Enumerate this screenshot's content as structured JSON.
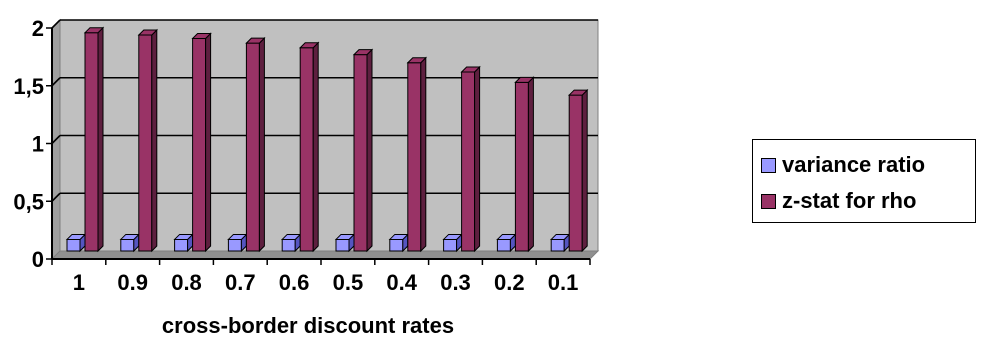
{
  "colors": {
    "plot_background": "#c0c0c0",
    "series1": "#9999ff",
    "series1_shadow": "#5555c0",
    "series2": "#993366",
    "series2_shadow": "#5e1f3f",
    "gridline": "#000000"
  },
  "chart_data": {
    "type": "bar",
    "title": "",
    "xlabel": "cross-border discount rates",
    "ylabel": "",
    "categories": [
      "1",
      "0.9",
      "0.8",
      "0.7",
      "0.6",
      "0.5",
      "0.4",
      "0.3",
      "0.2",
      "0.1"
    ],
    "y_ticks": [
      "0",
      "0,5",
      "1",
      "1,5",
      "2"
    ],
    "ylim": [
      0,
      2
    ],
    "grid": true,
    "legend_position": "right",
    "series": [
      {
        "name": "variance ratio",
        "values": [
          0.1,
          0.1,
          0.1,
          0.1,
          0.1,
          0.1,
          0.1,
          0.1,
          0.1,
          0.1
        ]
      },
      {
        "name": "z-stat for rho",
        "values": [
          1.89,
          1.87,
          1.84,
          1.8,
          1.76,
          1.7,
          1.63,
          1.55,
          1.46,
          1.35
        ]
      }
    ]
  }
}
